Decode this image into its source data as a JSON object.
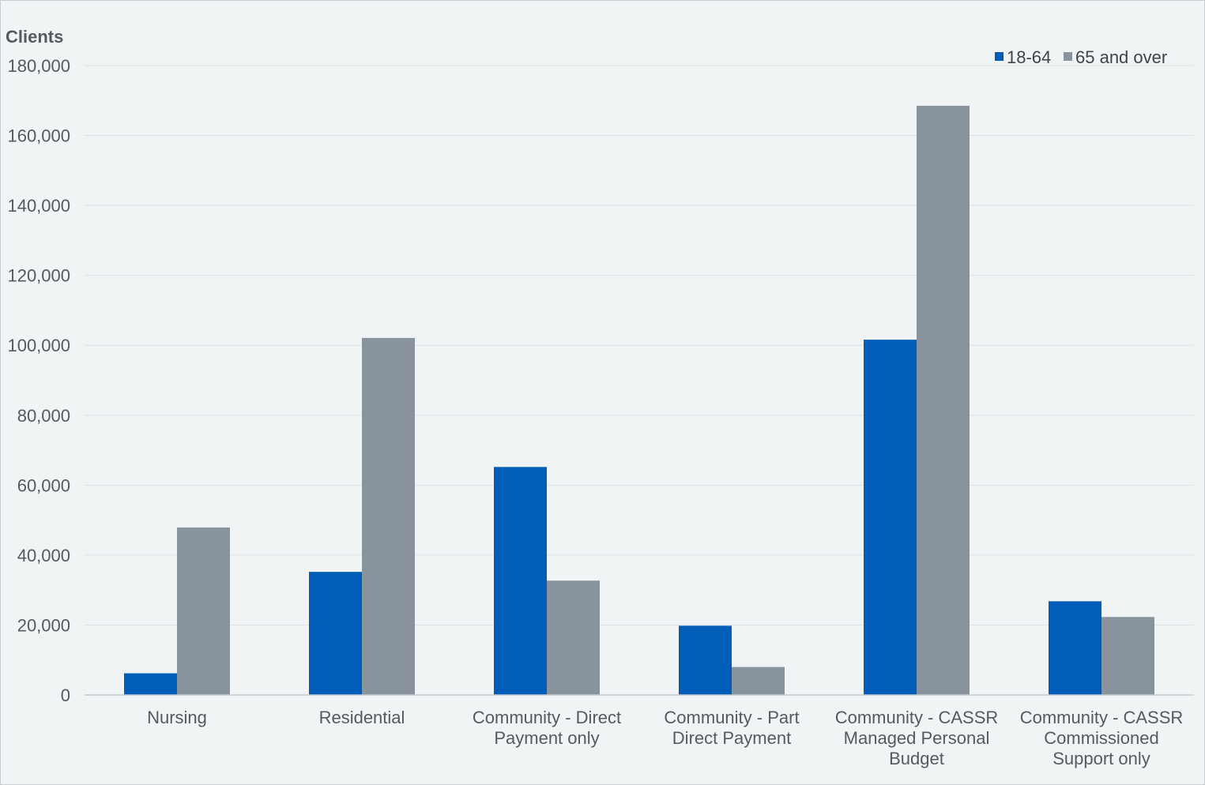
{
  "chart_data": {
    "type": "bar",
    "ylabel": "Clients",
    "ylim": [
      0,
      180000
    ],
    "yticks": [
      0,
      20000,
      40000,
      60000,
      80000,
      100000,
      120000,
      140000,
      160000,
      180000
    ],
    "ytick_labels": [
      "0",
      "20,000",
      "40,000",
      "60,000",
      "80,000",
      "100,000",
      "120,000",
      "140,000",
      "160,000",
      "180,000"
    ],
    "grid": true,
    "legend_position": "top-right",
    "categories": [
      [
        "Nursing"
      ],
      [
        "Residential"
      ],
      [
        "Community - Direct",
        "Payment only"
      ],
      [
        "Community - Part",
        "Direct Payment"
      ],
      [
        "Community - CASSR",
        "Managed Personal",
        "Budget"
      ],
      [
        "Community - CASSR",
        "Commissioned",
        "Support only"
      ]
    ],
    "series": [
      {
        "name": "18-64",
        "color": "#005eb8",
        "values": [
          6200,
          35200,
          65200,
          19800,
          101600,
          26800
        ]
      },
      {
        "name": "65 and over",
        "color": "#88939e",
        "values": [
          47900,
          102100,
          32700,
          8000,
          168500,
          22300
        ]
      }
    ]
  }
}
